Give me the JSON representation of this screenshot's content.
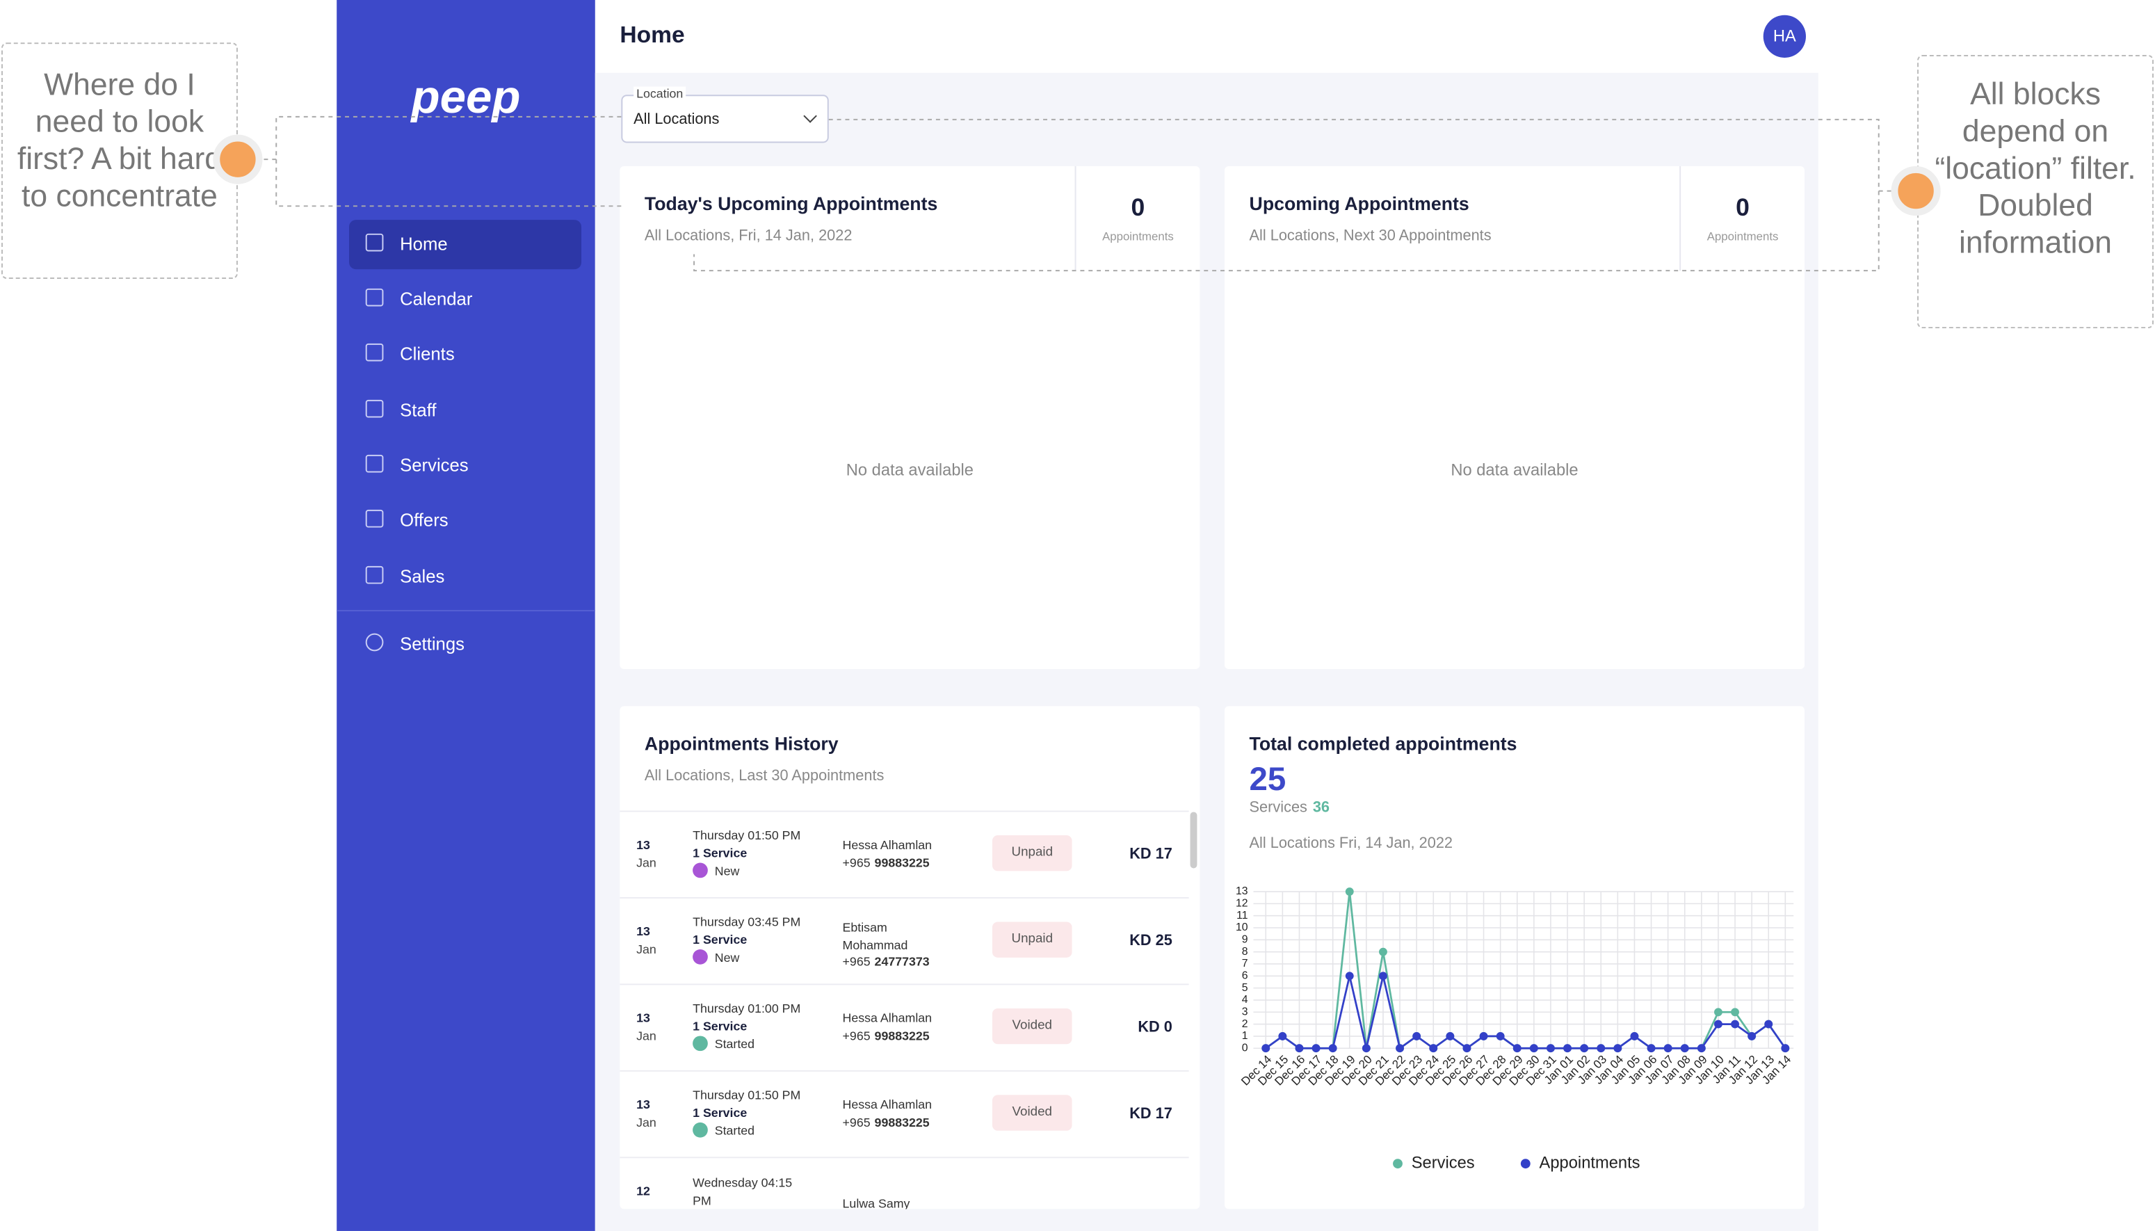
{
  "annotations": [
    {
      "text": "Where do I need to look first? A bit hard to concentrate"
    },
    {
      "text": "All blocks depend on “location” filter. Doubled information"
    }
  ],
  "sidebar": {
    "logo": "peep",
    "nav": [
      "Home",
      "Calendar",
      "Clients",
      "Staff",
      "Services",
      "Offers",
      "Sales"
    ],
    "settings": "Settings"
  },
  "header": {
    "title": "Home",
    "avatar": "HA"
  },
  "filter": {
    "label": "Location",
    "value": "All Locations"
  },
  "cards": [
    {
      "title": "Today's Upcoming Appointments",
      "subtitle": "All Locations, Fri, 14 Jan, 2022",
      "count": "0",
      "count_label": "Appointments",
      "empty": "No data available"
    },
    {
      "title": "Upcoming Appointments",
      "subtitle": "All Locations, Next 30 Appointments",
      "count": "0",
      "count_label": "Appointments",
      "empty": "No data available"
    }
  ],
  "history": {
    "title": "Appointments History",
    "subtitle": "All Locations, Last 30 Appointments",
    "rows": [
      {
        "day": "13",
        "month": "Jan",
        "time": "Thursday 01:50 PM",
        "service": "1 Service",
        "state": "New",
        "client": "Hessa Alhamlan",
        "code": "+965",
        "phone": "99883225",
        "status": "Unpaid",
        "amount": "KD 17"
      },
      {
        "day": "13",
        "month": "Jan",
        "time": "Thursday 03:45 PM",
        "service": "1 Service",
        "state": "New",
        "client": "Ebtisam Mohammad",
        "code": "+965",
        "phone": "24777373",
        "status": "Unpaid",
        "amount": "KD 25"
      },
      {
        "day": "13",
        "month": "Jan",
        "time": "Thursday 01:00 PM",
        "service": "1 Service",
        "state": "Started",
        "client": "Hessa Alhamlan",
        "code": "+965",
        "phone": "99883225",
        "status": "Voided",
        "amount": "KD 0"
      },
      {
        "day": "13",
        "month": "Jan",
        "time": "Thursday 01:50 PM",
        "service": "1 Service",
        "state": "Started",
        "client": "Hessa Alhamlan",
        "code": "+965",
        "phone": "99883225",
        "status": "Voided",
        "amount": "KD 17"
      },
      {
        "day": "12",
        "time": "Wednesday 04:15 PM",
        "client": "Lulwa Samy"
      }
    ]
  },
  "completed": {
    "title": "Total completed appointments",
    "total": "25",
    "services_label": "Services",
    "services_total": "36",
    "subtitle": "All Locations Fri, 14 Jan, 2022"
  },
  "chart": {
    "type": "line",
    "x": [
      "Dec 14",
      "Dec 15",
      "Dec 16",
      "Dec 17",
      "Dec 18",
      "Dec 19",
      "Dec 20",
      "Dec 21",
      "Dec 22",
      "Dec 23",
      "Dec 24",
      "Dec 25",
      "Dec 26",
      "Dec 27",
      "Dec 28",
      "Dec 29",
      "Dec 30",
      "Dec 31",
      "Jan 01",
      "Jan 02",
      "Jan 03",
      "Jan 04",
      "Jan 05",
      "Jan 06",
      "Jan 07",
      "Jan 08",
      "Jan 09",
      "Jan 10",
      "Jan 11",
      "Jan 12",
      "Jan 13",
      "Jan 14"
    ],
    "series": [
      {
        "name": "Services",
        "color": "#5fb8a0",
        "values": [
          0,
          1,
          0,
          0,
          0,
          13,
          0,
          8,
          0,
          1,
          0,
          1,
          0,
          1,
          1,
          0,
          0,
          0,
          0,
          0,
          0,
          0,
          1,
          0,
          0,
          0,
          0,
          3,
          3,
          1,
          2,
          0
        ]
      },
      {
        "name": "Appointments",
        "color": "#3340c8",
        "values": [
          0,
          1,
          0,
          0,
          0,
          6,
          0,
          6,
          0,
          1,
          0,
          1,
          0,
          1,
          1,
          0,
          0,
          0,
          0,
          0,
          0,
          0,
          1,
          0,
          0,
          0,
          0,
          2,
          2,
          1,
          2,
          0
        ]
      }
    ],
    "ylim": [
      0,
      13
    ],
    "yticks": [
      0,
      1,
      2,
      3,
      4,
      5,
      6,
      7,
      8,
      9,
      10,
      11,
      12,
      13
    ],
    "grid": true
  }
}
